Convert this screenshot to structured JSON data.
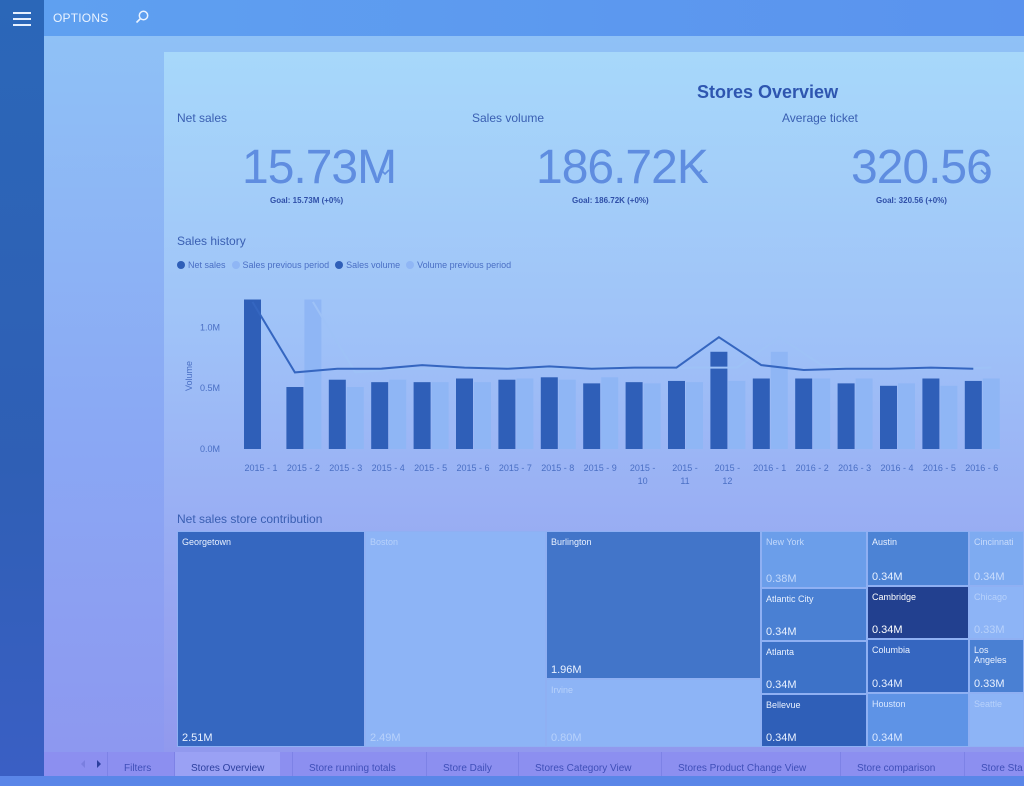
{
  "topbar": {
    "options_label": "OPTIONS"
  },
  "report": {
    "title": "Stores Overview"
  },
  "kpis": [
    {
      "label": "Net sales",
      "value": "15.73M",
      "goal": "Goal: 15.73M (+0%)"
    },
    {
      "label": "Sales volume",
      "value": "186.72K",
      "goal": "Goal: 186.72K (+0%)"
    },
    {
      "label": "Average ticket",
      "value": "320.56",
      "goal": "Goal: 320.56 (+0%)"
    }
  ],
  "sales_history": {
    "section_label": "Sales history",
    "legend": [
      {
        "label": "Net sales",
        "color": "#2f5fb8"
      },
      {
        "label": "Sales previous period",
        "color": "#8fb6f5"
      },
      {
        "label": "Sales volume",
        "color": "#2f5fb8"
      },
      {
        "label": "Volume previous period",
        "color": "#8fb6f5"
      }
    ]
  },
  "chart_data": {
    "type": "bar",
    "ylabel": "Volume",
    "ytick_labels": [
      "0.0M",
      "0.5M",
      "1.0M"
    ],
    "ylim": [
      0,
      1.3
    ],
    "categories": [
      [
        "2015 - 1"
      ],
      [
        "2015 - 2"
      ],
      [
        "2015 - 3"
      ],
      [
        "2015 - 4"
      ],
      [
        "2015 - 5"
      ],
      [
        "2015 - 6"
      ],
      [
        "2015 - 7"
      ],
      [
        "2015 - 8"
      ],
      [
        "2015 - 9"
      ],
      [
        "2015 -",
        "10"
      ],
      [
        "2015 -",
        "11"
      ],
      [
        "2015 -",
        "12"
      ],
      [
        "2016 - 1"
      ],
      [
        "2016 - 2"
      ],
      [
        "2016 - 3"
      ],
      [
        "2016 - 4"
      ],
      [
        "2016 - 5"
      ],
      [
        "2016 - 6"
      ]
    ],
    "series": [
      {
        "name": "Net sales",
        "values": [
          1.23,
          0.51,
          0.57,
          0.55,
          0.55,
          0.58,
          0.57,
          0.59,
          0.54,
          0.55,
          0.56,
          0.8,
          0.58,
          0.58,
          0.54,
          0.52,
          0.58,
          0.56
        ],
        "color": "#2f5fb8"
      },
      {
        "name": "Sales previous period",
        "values": [
          0,
          1.23,
          0.51,
          0.57,
          0.55,
          0.55,
          0.58,
          0.57,
          0.59,
          0.54,
          0.55,
          0.56,
          0.8,
          0.58,
          0.58,
          0.54,
          0.52,
          0.58
        ],
        "color": "#8fb6f5"
      },
      {
        "name": "Sales volume",
        "values": [
          1.21,
          0.63,
          0.66,
          0.66,
          0.69,
          0.67,
          0.66,
          0.68,
          0.66,
          0.67,
          0.67,
          0.92,
          0.69,
          0.65,
          0.66,
          0.66,
          0.67,
          0.66
        ],
        "color": "#3566c0"
      },
      {
        "name": "Volume previous period",
        "values": [
          null,
          1.21,
          0.63,
          0.66,
          0.66,
          0.69,
          0.67,
          0.66,
          0.68,
          0.66,
          0.67,
          0.67,
          0.92,
          0.69,
          0.65,
          0.66,
          0.66,
          0.67
        ],
        "color": "#9ec2f7"
      }
    ]
  },
  "treemap": {
    "section_label": "Net sales store contribution",
    "cells": [
      {
        "name": "Georgetown",
        "value": "2.51M",
        "color": "#3567c0",
        "text_color": "#e9f1ff"
      },
      {
        "name": "Boston",
        "value": "2.49M",
        "color": "#8db4f6",
        "text_color": "#b7d1fb"
      },
      {
        "name": "Burlington",
        "value": "1.96M",
        "color": "#4275c9",
        "text_color": "#e9f1ff"
      },
      {
        "name": "Irvine",
        "value": "0.80M",
        "color": "#8db4f6",
        "text_color": "#b7d1fb"
      },
      {
        "name": "New York",
        "value": "0.38M",
        "color": "#6b9eea",
        "text_color": "#c2d8fb"
      },
      {
        "name": "Atlantic City",
        "value": "0.34M",
        "color": "#4a80d3",
        "text_color": "#e9f1ff"
      },
      {
        "name": "Atlanta",
        "value": "0.34M",
        "color": "#3d72c8",
        "text_color": "#e9f1ff"
      },
      {
        "name": "Bellevue",
        "value": "0.34M",
        "color": "#2f5fb8",
        "text_color": "#e9f1ff"
      },
      {
        "name": "Austin",
        "value": "0.34M",
        "color": "#4c83d5",
        "text_color": "#e9f1ff"
      },
      {
        "name": "Cambridge",
        "value": "0.34M",
        "color": "#22408f",
        "text_color": "#ffffff"
      },
      {
        "name": "Columbia",
        "value": "0.34M",
        "color": "#3566c0",
        "text_color": "#e9f1ff"
      },
      {
        "name": "Houston",
        "value": "0.34M",
        "color": "#5e93e6",
        "text_color": "#dbe8ff"
      },
      {
        "name": "Cincinnati",
        "value": "0.34M",
        "color": "#7eabf1",
        "text_color": "#c8dcfc"
      },
      {
        "name": "Chicago",
        "value": "0.33M",
        "color": "#8db4f6",
        "text_color": "#b7d1fb"
      },
      {
        "name": "Los Angeles",
        "value": "0.33M",
        "color": "#4a80d3",
        "text_color": "#e9f1ff"
      },
      {
        "name": "Seattle",
        "value": "",
        "color": "#8db4f6",
        "text_color": "#b7d1fb"
      }
    ]
  },
  "tabs": [
    {
      "label": "Filters",
      "active": false
    },
    {
      "label": "Stores Overview",
      "active": true
    },
    {
      "label": "Store running totals",
      "active": false
    },
    {
      "label": "Store Daily",
      "active": false
    },
    {
      "label": "Stores Category View",
      "active": false
    },
    {
      "label": "Stores Product Change View",
      "active": false
    },
    {
      "label": "Store comparison",
      "active": false
    },
    {
      "label": "Store Sta",
      "active": false
    }
  ]
}
